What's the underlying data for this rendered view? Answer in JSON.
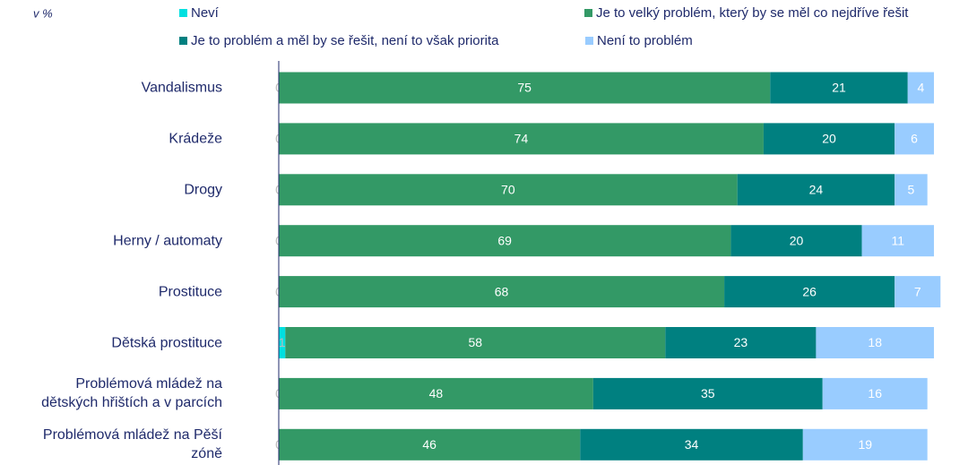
{
  "chart_data": {
    "type": "stacked-bar-horizontal",
    "subtitle": "v %",
    "categories": [
      "Vandalismus",
      "Krádeže",
      "Drogy",
      "Herny / automaty",
      "Prostituce",
      "Dětská prostituce",
      "Problémová mládež na\ndětských hřištích a v parcích",
      "Problémová mládež na Pěší\nzóně"
    ],
    "series": [
      {
        "name": "Neví",
        "color": "#00e0e0",
        "values": [
          0,
          0,
          0,
          0,
          0,
          1,
          0,
          0
        ]
      },
      {
        "name": "Je to velký problém, který by se měl co nejdříve řešit",
        "color": "#339966",
        "values": [
          75,
          74,
          70,
          69,
          68,
          58,
          48,
          46
        ]
      },
      {
        "name": "Je to problém a měl by se řešit, není to však priorita",
        "color": "#008080",
        "values": [
          21,
          20,
          24,
          20,
          26,
          23,
          35,
          34
        ]
      },
      {
        "name": "Není to problém",
        "color": "#99ccff",
        "values": [
          4,
          6,
          5,
          11,
          7,
          18,
          16,
          19
        ]
      }
    ],
    "xlim": [
      0,
      100
    ],
    "legend": "top"
  }
}
